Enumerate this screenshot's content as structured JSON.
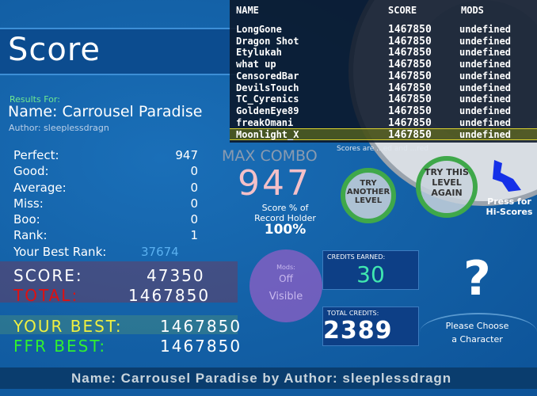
{
  "title": "Score",
  "results_for": "Results For:",
  "song_name": "Name: Carrousel Paradise",
  "author": "Author: sleeplessdragn",
  "stats": [
    {
      "label": "Perfect:",
      "value": "947"
    },
    {
      "label": "Good:",
      "value": "0"
    },
    {
      "label": "Average:",
      "value": "0"
    },
    {
      "label": "Miss:",
      "value": "0"
    },
    {
      "label": "Boo:",
      "value": "0"
    },
    {
      "label": "Rank:",
      "value": "1"
    }
  ],
  "best_rank": {
    "label": "Your Best Rank:",
    "value": "37674"
  },
  "score": {
    "label": "SCORE:",
    "value": "47350"
  },
  "total": {
    "label": "TOTAL:",
    "value": "1467850"
  },
  "your_best": {
    "label": "YOUR BEST:",
    "value": "1467850"
  },
  "ffr_best": {
    "label": "FFR BEST:",
    "value": "1467850"
  },
  "max_combo": {
    "label": "MAX COMBO",
    "value": "947"
  },
  "record": {
    "line1": "Score % of",
    "line2": "Record Holder",
    "value": "100%"
  },
  "mods": {
    "label": "Mods:",
    "value1": "Off",
    "value2": "Visible"
  },
  "credits_earned": {
    "label": "CREDITS EARNED:",
    "value": "30"
  },
  "total_credits": {
    "label": "TOTAL CREDITS:",
    "value": "2389"
  },
  "character": {
    "icon": "?",
    "line1": "Please Choose",
    "line2": "a Character"
  },
  "try_another": "TRY ANOTHER LEVEL",
  "try_again": "TRY THIS LEVEL AGAIN",
  "hiscores_button": "Press for Hi-Scores",
  "scores_note": "Scores are ...ed and ...red",
  "leaderboard": {
    "headers": {
      "name": "NAME",
      "score": "SCORE",
      "mods": "MODS"
    },
    "rows": [
      {
        "name": "LongGone",
        "score": "1467850",
        "mods": "undefined"
      },
      {
        "name": "Dragon Shot",
        "score": "1467850",
        "mods": "undefined"
      },
      {
        "name": "Etylukah",
        "score": "1467850",
        "mods": "undefined"
      },
      {
        "name": "what up",
        "score": "1467850",
        "mods": "undefined"
      },
      {
        "name": "CensoredBar",
        "score": "1467850",
        "mods": "undefined"
      },
      {
        "name": "DevilsTouch",
        "score": "1467850",
        "mods": "undefined"
      },
      {
        "name": "TC_Cyrenics",
        "score": "1467850",
        "mods": "undefined"
      },
      {
        "name": "GoldenEye89",
        "score": "1467850",
        "mods": "undefined"
      },
      {
        "name": "freakOmani",
        "score": "1467850",
        "mods": "undefined"
      },
      {
        "name": "Moonlight_X",
        "score": "1467850",
        "mods": "undefined",
        "highlighted": true
      }
    ]
  },
  "footer": "Name:  Carrousel  Paradise  by  Author:  sleeplessdragn",
  "colors": {
    "score_label": "#ffffff",
    "total_label": "#e01010",
    "your_best_label": "#f0f040",
    "ffr_best_label": "#30f030",
    "credits_earned": "#40e8b0",
    "max_combo_value": "#f4c0c8",
    "best_rank_value": "#5ab0f0",
    "highlight": "#d8d030"
  }
}
